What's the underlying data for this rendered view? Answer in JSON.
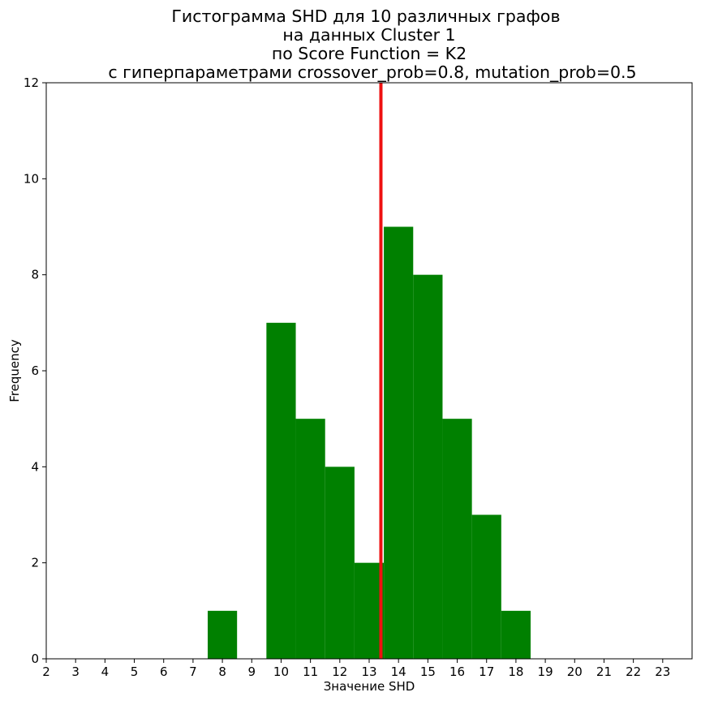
{
  "chart_data": {
    "type": "bar",
    "title_lines": [
      "Гистограмма SHD для 10 различных графов",
      "на данных Cluster 1",
      "по Score Function = K2",
      "с гиперпараметрами crossover_prob=0.8, mutation_prob=0.5"
    ],
    "xlabel": "Значение SHD",
    "ylabel": "Frequency",
    "categories": [
      8,
      9,
      10,
      11,
      12,
      13,
      14,
      15,
      16,
      17,
      18
    ],
    "values": [
      1,
      0,
      7,
      5,
      4,
      2,
      9,
      8,
      5,
      3,
      1
    ],
    "bar_color": "#008000",
    "mean_line": {
      "x": 13.4,
      "color": "#ee1111"
    },
    "xlim": [
      2,
      24
    ],
    "ylim": [
      0,
      12
    ],
    "xticks": [
      "2",
      "3",
      "4",
      "5",
      "6",
      "7",
      "8",
      "9",
      "10",
      "11",
      "12",
      "13",
      "14",
      "15",
      "16",
      "17",
      "18",
      "19",
      "20",
      "21",
      "22",
      "23"
    ],
    "yticks": [
      "0",
      "2",
      "4",
      "6",
      "8",
      "10",
      "12"
    ],
    "grid": false,
    "legend": "none"
  }
}
